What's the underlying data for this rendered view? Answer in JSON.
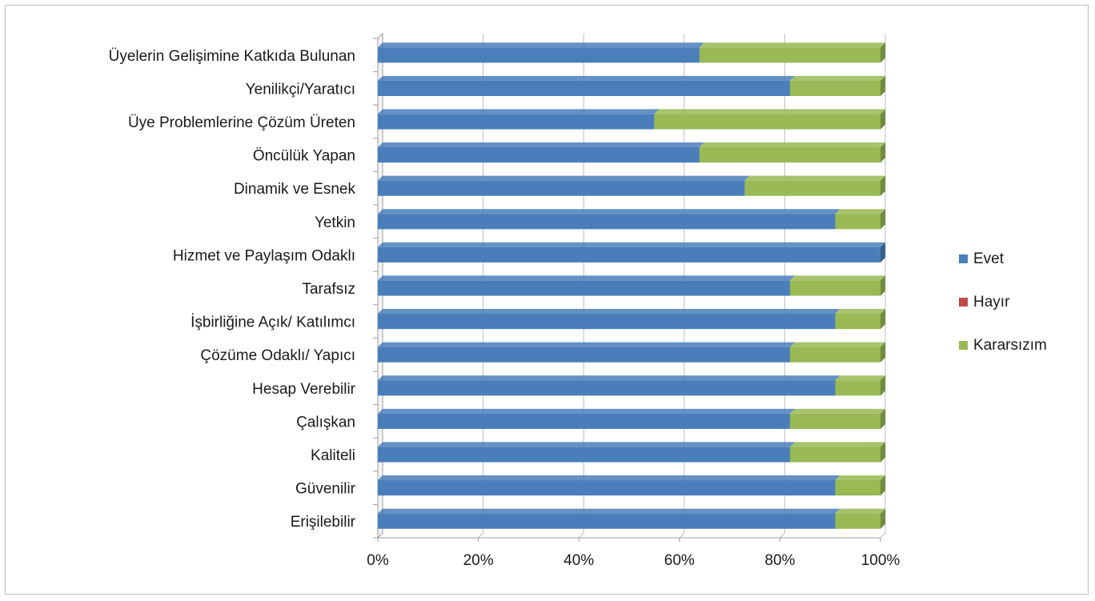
{
  "chart_data": {
    "type": "bar",
    "orientation": "horizontal",
    "stacked": "percent",
    "categories": [
      "Üyelerin Gelişimine Katkıda Bulunan",
      "Yenilikçi/Yaratıcı",
      "Üye Problemlerine Çözüm Üreten",
      "Öncülük Yapan",
      "Dinamik ve Esnek",
      "Yetkin",
      "Hizmet ve Paylaşım Odaklı",
      "Tarafsız",
      "İşbirliğine Açık/ Katılımcı",
      "Çözüme Odaklı/ Yapıcı",
      "Hesap Verebilir",
      "Çalışkan",
      "Kaliteli",
      "Güvenilir",
      "Erişilebilir"
    ],
    "series": [
      {
        "name": "Evet",
        "color": "#4a7ebb",
        "values": [
          64,
          82,
          55,
          64,
          73,
          91,
          100,
          82,
          91,
          82,
          91,
          82,
          82,
          91,
          91
        ]
      },
      {
        "name": "Hayır",
        "color": "#be4b48",
        "values": [
          0,
          0,
          0,
          0,
          0,
          0,
          0,
          0,
          0,
          0,
          0,
          0,
          0,
          0,
          0
        ]
      },
      {
        "name": "Kararsızım",
        "color": "#98b954",
        "values": [
          36,
          18,
          45,
          36,
          27,
          9,
          0,
          18,
          9,
          18,
          9,
          18,
          18,
          9,
          9
        ]
      }
    ],
    "x_ticks": [
      "0%",
      "20%",
      "40%",
      "60%",
      "80%",
      "100%"
    ],
    "xlim": [
      0,
      100
    ],
    "title": "",
    "xlabel": "",
    "ylabel": "",
    "grid": true,
    "legend_position": "right"
  }
}
